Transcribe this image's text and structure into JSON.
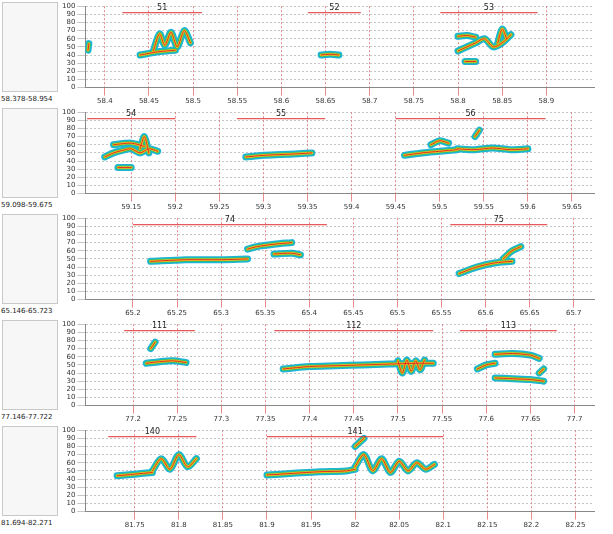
{
  "chart_data": [
    {
      "type": "scatter",
      "title": "58.378-58.954",
      "grid": true,
      "color": "#1fb5d6",
      "xlim": [
        58.378,
        58.954
      ],
      "xticks": [
        58.4,
        58.45,
        58.5,
        58.55,
        58.6,
        58.65,
        58.7,
        58.75,
        58.8,
        58.85,
        58.9
      ],
      "ylim": [
        0,
        100
      ],
      "yticks": [
        0,
        10,
        20,
        30,
        40,
        50,
        60,
        70,
        80,
        90,
        100
      ],
      "segments": [
        {
          "label": "51",
          "start": 58.42,
          "end": 58.51,
          "level": 92
        },
        {
          "label": "52",
          "start": 58.63,
          "end": 58.69,
          "level": 92
        },
        {
          "label": "53",
          "start": 58.78,
          "end": 58.89,
          "level": 92
        }
      ],
      "contours": [
        {
          "x": [
            58.381,
            58.382
          ],
          "y": [
            46,
            54
          ]
        },
        {
          "x": [
            58.44,
            58.45,
            58.46,
            58.47,
            58.48
          ],
          "y": [
            40,
            42,
            44,
            45,
            46
          ]
        },
        {
          "x": [
            58.455,
            58.462,
            58.468,
            58.475,
            58.482,
            58.49,
            58.497
          ],
          "y": [
            45,
            66,
            52,
            68,
            50,
            70,
            55
          ]
        },
        {
          "x": [
            58.645,
            58.655,
            58.665
          ],
          "y": [
            40,
            41,
            40
          ]
        },
        {
          "x": [
            58.8,
            58.81,
            58.82
          ],
          "y": [
            63,
            64,
            62
          ]
        },
        {
          "x": [
            58.808,
            58.82
          ],
          "y": [
            32,
            32
          ]
        },
        {
          "x": [
            58.8,
            58.81,
            58.82,
            58.83,
            58.84,
            58.85,
            58.86
          ],
          "y": [
            45,
            50,
            55,
            60,
            50,
            55,
            65
          ]
        },
        {
          "x": [
            58.845,
            58.85,
            58.855
          ],
          "y": [
            55,
            72,
            60
          ]
        }
      ]
    },
    {
      "type": "scatter",
      "title": "59.098-59.675",
      "grid": true,
      "color": "#1fb5d6",
      "xlim": [
        59.098,
        59.675
      ],
      "xticks": [
        59.15,
        59.2,
        59.25,
        59.3,
        59.35,
        59.4,
        59.45,
        59.5,
        59.55,
        59.6,
        59.65
      ],
      "ylim": [
        0,
        100
      ],
      "yticks": [
        0,
        10,
        20,
        30,
        40,
        50,
        60,
        70,
        80,
        90,
        100
      ],
      "segments": [
        {
          "label": "54",
          "start": 59.1,
          "end": 59.2,
          "level": 92
        },
        {
          "label": "55",
          "start": 59.27,
          "end": 59.37,
          "level": 92
        },
        {
          "label": "56",
          "start": 59.45,
          "end": 59.62,
          "level": 92
        }
      ],
      "contours": [
        {
          "x": [
            59.13,
            59.15,
            59.165
          ],
          "y": [
            60,
            62,
            58
          ]
        },
        {
          "x": [
            59.12,
            59.13,
            59.14,
            59.15,
            59.16,
            59.17,
            59.18
          ],
          "y": [
            45,
            50,
            53,
            55,
            50,
            55,
            52
          ]
        },
        {
          "x": [
            59.135,
            59.15
          ],
          "y": [
            32,
            32
          ]
        },
        {
          "x": [
            59.16,
            59.165,
            59.17
          ],
          "y": [
            55,
            70,
            50
          ]
        },
        {
          "x": [
            59.28,
            59.3,
            59.32,
            59.34,
            59.355
          ],
          "y": [
            45,
            47,
            48,
            49,
            50
          ]
        },
        {
          "x": [
            59.46,
            59.48,
            59.5,
            59.52
          ],
          "y": [
            47,
            50,
            52,
            54
          ]
        },
        {
          "x": [
            59.52,
            59.54,
            59.56,
            59.58,
            59.6
          ],
          "y": [
            55,
            54,
            56,
            54,
            55
          ]
        },
        {
          "x": [
            59.49,
            59.5,
            59.51
          ],
          "y": [
            60,
            65,
            62
          ]
        },
        {
          "x": [
            59.54,
            59.545
          ],
          "y": [
            70,
            78
          ]
        }
      ]
    },
    {
      "type": "scatter",
      "title": "65.146-65.723",
      "grid": true,
      "color": "#1fb5d6",
      "xlim": [
        65.146,
        65.723
      ],
      "xticks": [
        65.2,
        65.25,
        65.3,
        65.35,
        65.4,
        65.45,
        65.5,
        65.55,
        65.6,
        65.65,
        65.7
      ],
      "ylim": [
        0,
        100
      ],
      "yticks": [
        0,
        10,
        20,
        30,
        40,
        50,
        60,
        70,
        80,
        90,
        100
      ],
      "segments": [
        {
          "label": "74",
          "start": 65.2,
          "end": 65.42,
          "level": 92
        },
        {
          "label": "75",
          "start": 65.56,
          "end": 65.67,
          "level": 92
        }
      ],
      "contours": [
        {
          "x": [
            65.22,
            65.26,
            65.3,
            65.33
          ],
          "y": [
            47,
            49,
            49,
            50
          ]
        },
        {
          "x": [
            65.33,
            65.34,
            65.36,
            65.38
          ],
          "y": [
            62,
            65,
            68,
            70
          ]
        },
        {
          "x": [
            65.36,
            65.38,
            65.39
          ],
          "y": [
            56,
            57,
            55
          ]
        },
        {
          "x": [
            65.57,
            65.59,
            65.61,
            65.63
          ],
          "y": [
            32,
            40,
            45,
            47
          ]
        },
        {
          "x": [
            65.62,
            65.63,
            65.64
          ],
          "y": [
            50,
            60,
            65
          ]
        }
      ]
    },
    {
      "type": "scatter",
      "title": "77.146-77.722",
      "grid": true,
      "color": "#1fb5d6",
      "xlim": [
        77.146,
        77.722
      ],
      "xticks": [
        77.2,
        77.25,
        77.3,
        77.35,
        77.4,
        77.45,
        77.5,
        77.55,
        77.6,
        77.65,
        77.7
      ],
      "ylim": [
        0,
        100
      ],
      "yticks": [
        0,
        10,
        20,
        30,
        40,
        50,
        60,
        70,
        80,
        90,
        100
      ],
      "segments": [
        {
          "label": "111",
          "start": 77.19,
          "end": 77.27,
          "level": 92
        },
        {
          "label": "112",
          "start": 77.36,
          "end": 77.54,
          "level": 92
        },
        {
          "label": "113",
          "start": 77.57,
          "end": 77.68,
          "level": 92
        }
      ],
      "contours": [
        {
          "x": [
            77.22,
            77.225
          ],
          "y": [
            70,
            78
          ]
        },
        {
          "x": [
            77.215,
            77.23,
            77.245,
            77.26
          ],
          "y": [
            52,
            54,
            55,
            53
          ]
        },
        {
          "x": [
            77.37,
            77.4,
            77.43,
            77.46,
            77.49,
            77.52,
            77.54
          ],
          "y": [
            45,
            48,
            49,
            50,
            51,
            52,
            52
          ]
        },
        {
          "x": [
            77.5,
            77.505,
            77.51,
            77.515,
            77.52,
            77.525,
            77.53
          ],
          "y": [
            55,
            40,
            56,
            42,
            55,
            44,
            56
          ]
        },
        {
          "x": [
            77.59,
            77.6,
            77.61
          ],
          "y": [
            45,
            50,
            52
          ]
        },
        {
          "x": [
            77.61,
            77.63,
            77.65,
            77.66
          ],
          "y": [
            63,
            64,
            62,
            58
          ]
        },
        {
          "x": [
            77.61,
            77.63,
            77.65,
            77.665
          ],
          "y": [
            34,
            33,
            32,
            30
          ]
        },
        {
          "x": [
            77.66,
            77.665
          ],
          "y": [
            40,
            45
          ]
        }
      ]
    },
    {
      "type": "scatter",
      "title": "81.694-82.271",
      "grid": true,
      "color": "#1fb5d6",
      "xlim": [
        81.694,
        82.271
      ],
      "xticks": [
        81.75,
        81.8,
        81.85,
        81.9,
        81.95,
        82,
        82.05,
        82.1,
        82.15,
        82.2,
        82.25
      ],
      "ylim": [
        0,
        100
      ],
      "yticks": [
        0,
        10,
        20,
        30,
        40,
        50,
        60,
        70,
        80,
        90,
        100
      ],
      "segments": [
        {
          "label": "140",
          "start": 81.72,
          "end": 81.82,
          "level": 92
        },
        {
          "label": "141",
          "start": 81.9,
          "end": 82.1,
          "level": 92
        }
      ],
      "contours": [
        {
          "x": [
            81.73,
            81.75,
            81.77
          ],
          "y": [
            44,
            46,
            48
          ]
        },
        {
          "x": [
            81.77,
            81.78,
            81.79,
            81.8,
            81.81,
            81.82
          ],
          "y": [
            50,
            65,
            52,
            70,
            55,
            65
          ]
        },
        {
          "x": [
            81.9,
            81.93,
            81.96,
            81.99,
            82.0
          ],
          "y": [
            45,
            47,
            49,
            50,
            52
          ]
        },
        {
          "x": [
            82.0,
            82.01,
            82.02,
            82.03,
            82.04,
            82.05,
            82.06,
            82.07,
            82.08,
            82.09
          ],
          "y": [
            55,
            70,
            50,
            65,
            48,
            62,
            50,
            60,
            52,
            58
          ]
        },
        {
          "x": [
            82.0,
            82.01
          ],
          "y": [
            80,
            90
          ]
        }
      ]
    }
  ]
}
